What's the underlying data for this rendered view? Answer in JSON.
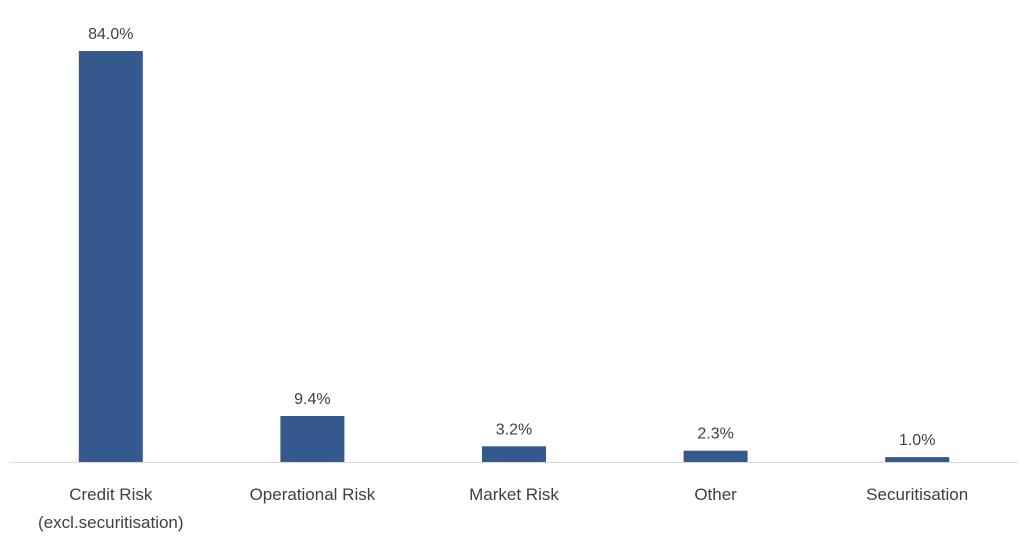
{
  "chart_data": {
    "type": "bar",
    "categories": [
      [
        "Credit Risk",
        "(excl.securitisation)"
      ],
      [
        "Operational Risk"
      ],
      [
        "Market Risk"
      ],
      [
        "Other"
      ],
      [
        "Securitisation"
      ]
    ],
    "values": [
      84.0,
      9.4,
      3.2,
      2.3,
      1.0
    ],
    "data_labels": [
      "84.0%",
      "9.4%",
      "3.2%",
      "2.3%",
      "1.0%"
    ],
    "ylim": [
      0,
      84.0
    ],
    "grid": false,
    "legend": "none",
    "bar_color": "#34598f",
    "axis_color": "#d9d9d9"
  }
}
